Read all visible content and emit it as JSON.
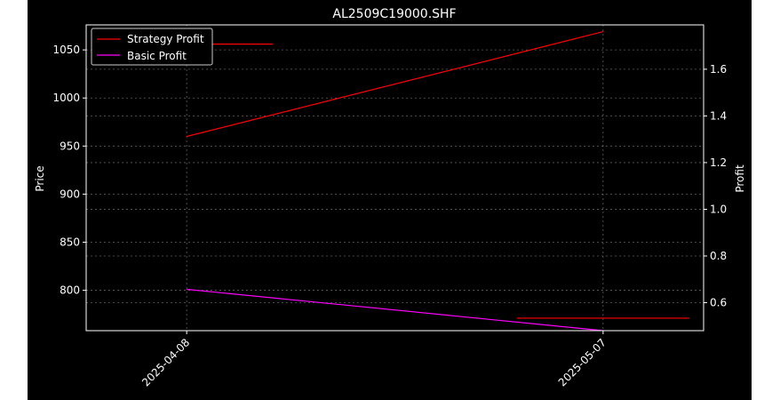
{
  "chart_data": {
    "type": "line",
    "title": "AL2509C19000.SHF",
    "xlabel": "",
    "ylabel_left": "Price",
    "ylabel_right": "Profit",
    "x_ticks": [
      "2025-04-08",
      "2025-05-07"
    ],
    "x_range": [
      "2025-04-01",
      "2025-05-14"
    ],
    "y_left": {
      "range": [
        758,
        1076
      ],
      "ticks": [
        800,
        850,
        900,
        950,
        1000,
        1050
      ]
    },
    "y_right": {
      "range": [
        0.48,
        1.79
      ],
      "ticks": [
        0.6,
        0.8,
        1.0,
        1.2,
        1.4,
        1.6
      ]
    },
    "grid": true,
    "legend_position": "upper-left",
    "series": [
      {
        "name": "Strategy Profit",
        "axis": "left",
        "color": "#ff0000",
        "points": [
          {
            "x": "2025-04-08",
            "y": 960
          },
          {
            "x": "2025-05-07",
            "y": 1069
          }
        ]
      },
      {
        "name": "Basic Profit",
        "axis": "left",
        "color": "#ff00ff",
        "points": [
          {
            "x": "2025-04-08",
            "y": 801
          },
          {
            "x": "2025-05-07",
            "y": 758
          }
        ]
      }
    ],
    "reference_lines": [
      {
        "axis": "left",
        "value": 1056,
        "x_start": "2025-04-08",
        "x_end": "2025-04-14",
        "color": "#ff0000"
      },
      {
        "axis": "left",
        "value": 771,
        "x_start": "2025-05-01",
        "x_end": "2025-05-13",
        "color": "#ff0000"
      }
    ]
  }
}
